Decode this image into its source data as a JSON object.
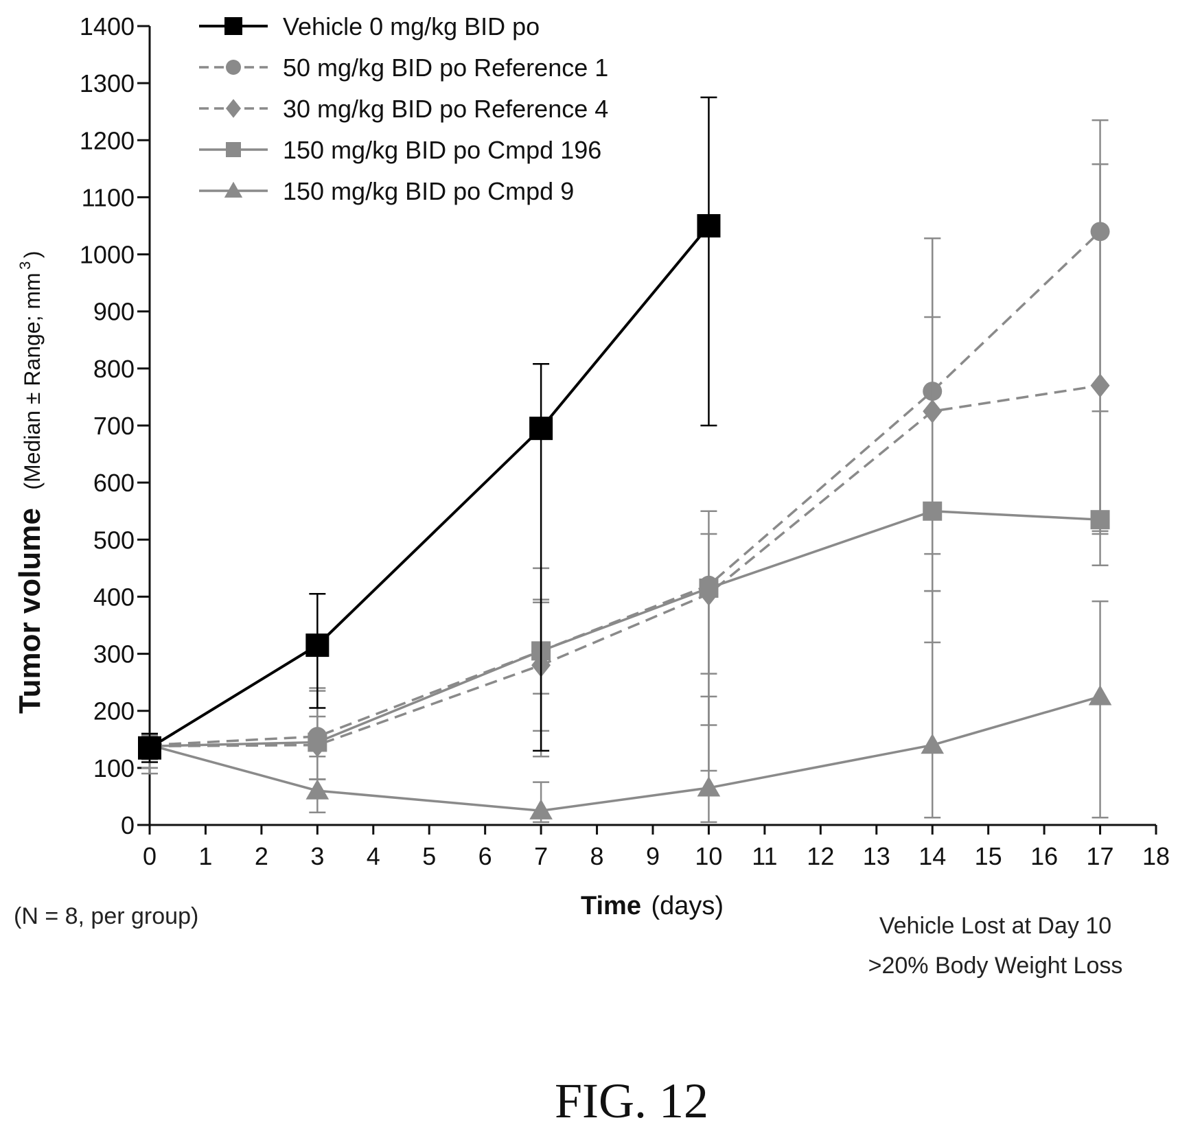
{
  "chart_data": {
    "type": "line",
    "ylabel": "Tumor volume",
    "ylabel_detail": "(Median ± Range; mm",
    "ylabel_superscript": "3",
    "ylabel_close": ")",
    "xlabel": "Time",
    "xlabel_unit": "(days)",
    "xlim": [
      0,
      18
    ],
    "ylim": [
      0,
      1400
    ],
    "x_ticks": [
      "0",
      "1",
      "2",
      "3",
      "4",
      "5",
      "6",
      "7",
      "8",
      "9",
      "10",
      "11",
      "12",
      "13",
      "14",
      "15",
      "16",
      "17",
      "18"
    ],
    "y_ticks": [
      "0",
      "100",
      "200",
      "300",
      "400",
      "500",
      "600",
      "700",
      "800",
      "900",
      "1000",
      "1100",
      "1200",
      "1300",
      "1400"
    ],
    "grid": false,
    "legend_position": "top-left",
    "series": [
      {
        "name": "Vehicle 0 mg/kg BID po",
        "marker": "square",
        "dash": "solid",
        "color": "#000000",
        "x": [
          0,
          3,
          7,
          10
        ],
        "y": [
          135,
          315,
          695,
          1050
        ],
        "err_low": [
          110,
          205,
          130,
          700
        ],
        "err_high": [
          160,
          405,
          808,
          1275
        ]
      },
      {
        "name": "50 mg/kg BID po Reference 1",
        "marker": "circle",
        "dash": "dashed",
        "color": "#8a8a8a",
        "x": [
          0,
          3,
          7,
          10,
          14,
          17
        ],
        "y": [
          140,
          155,
          305,
          420,
          760,
          1040
        ],
        "err_low": [
          115,
          120,
          230,
          265,
          475,
          515
        ],
        "err_high": [
          160,
          240,
          450,
          550,
          1028,
          1235
        ]
      },
      {
        "name": "30 mg/kg BID po Reference 4",
        "marker": "diamond",
        "dash": "dashed",
        "color": "#8a8a8a",
        "x": [
          0,
          3,
          7,
          10,
          14,
          17
        ],
        "y": [
          138,
          140,
          280,
          405,
          725,
          770
        ],
        "err_low": [
          100,
          80,
          120,
          175,
          320,
          510
        ],
        "err_high": [
          158,
          235,
          395,
          510,
          890,
          1158
        ]
      },
      {
        "name": "150 mg/kg BID po Cmpd 196",
        "marker": "square",
        "dash": "solid",
        "color": "#8a8a8a",
        "x": [
          0,
          3,
          7,
          10,
          14,
          17
        ],
        "y": [
          138,
          145,
          305,
          415,
          550,
          535
        ],
        "err_low": [
          100,
          80,
          165,
          95,
          410,
          455
        ],
        "err_high": [
          155,
          190,
          390,
          430,
          1028,
          725
        ]
      },
      {
        "name": "150 mg/kg BID po Cmpd 9",
        "marker": "triangle",
        "dash": "solid",
        "color": "#8a8a8a",
        "x": [
          0,
          3,
          7,
          10,
          14,
          17
        ],
        "y": [
          140,
          60,
          25,
          65,
          140,
          225
        ],
        "err_low": [
          90,
          22,
          5,
          5,
          13,
          13
        ],
        "err_high": [
          155,
          80,
          75,
          225,
          410,
          392
        ]
      }
    ]
  },
  "annotations": {
    "sample_size": "(N = 8, per group)",
    "vehicle_note_line1": "Vehicle Lost at Day 10",
    "vehicle_note_line2": ">20% Body Weight Loss",
    "figure_label": "FIG. 12"
  }
}
